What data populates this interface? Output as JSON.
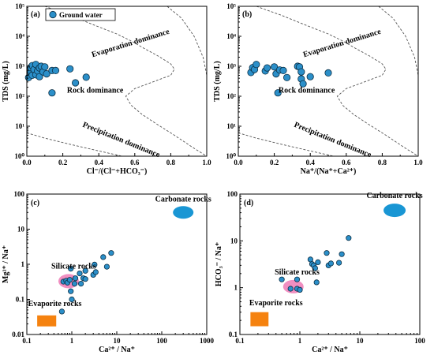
{
  "colors": {
    "point_fill": "#2b8fc9",
    "point_stroke": "#0b2f45",
    "boundary": "#555555",
    "carbonate": "#1996d4",
    "silicate": "#f08fc1",
    "evaporite": "#f5820f"
  },
  "chart_data": [
    {
      "id": "a",
      "type": "scatter",
      "panel_label": "(a)",
      "xlabel": "Cl⁻/(Cl⁻+HCO₃⁻)",
      "ylabel": "TDS (mg/L)",
      "xlim": [
        0,
        1
      ],
      "ylim": [
        1,
        100000
      ],
      "xscale": "linear",
      "yscale": "log",
      "x_ticks": [
        "0.0",
        "0.2",
        "0.4",
        "0.6",
        "0.8",
        "1.0"
      ],
      "y_ticks": [
        "10⁰",
        "10¹",
        "10²",
        "10³",
        "10⁴",
        "10⁵"
      ],
      "legend": {
        "label": "Ground water",
        "placement": "top-left"
      },
      "annotations": [
        "Evaporation dominance",
        "Rock dominance",
        "Precipitation dominance"
      ],
      "series": [
        {
          "name": "Ground water",
          "points": [
            [
              0.01,
              420
            ],
            [
              0.02,
              650
            ],
            [
              0.02,
              900
            ],
            [
              0.03,
              500
            ],
            [
              0.03,
              1050
            ],
            [
              0.04,
              780
            ],
            [
              0.05,
              1150
            ],
            [
              0.05,
              520
            ],
            [
              0.06,
              700
            ],
            [
              0.07,
              880
            ],
            [
              0.07,
              450
            ],
            [
              0.08,
              1000
            ],
            [
              0.09,
              650
            ],
            [
              0.1,
              950
            ],
            [
              0.11,
              560
            ],
            [
              0.14,
              720
            ],
            [
              0.16,
              720
            ],
            [
              0.14,
              130
            ],
            [
              0.24,
              820
            ],
            [
              0.27,
              280
            ],
            [
              0.33,
              430
            ]
          ]
        }
      ]
    },
    {
      "id": "b",
      "type": "scatter",
      "panel_label": "(b)",
      "xlabel": "Na⁺/(Na⁺+Ca²⁺)",
      "ylabel": "TDS (mg/L)",
      "xlim": [
        0,
        1
      ],
      "ylim": [
        1,
        100000
      ],
      "xscale": "linear",
      "yscale": "log",
      "x_ticks": [
        "0.0",
        "0.2",
        "0.4",
        "0.6",
        "0.8",
        "1.0"
      ],
      "y_ticks": [
        "10⁰",
        "10¹",
        "10²",
        "10³",
        "10⁴",
        "10⁵"
      ],
      "annotations": [
        "Evaporation dominance",
        "Rock dominance",
        "Precipitation dominance"
      ],
      "series": [
        {
          "points": [
            [
              0.07,
              620
            ],
            [
              0.08,
              900
            ],
            [
              0.09,
              780
            ],
            [
              0.1,
              1150
            ],
            [
              0.15,
              700
            ],
            [
              0.16,
              880
            ],
            [
              0.2,
              950
            ],
            [
              0.21,
              560
            ],
            [
              0.22,
              130
            ],
            [
              0.23,
              750
            ],
            [
              0.25,
              720
            ],
            [
              0.27,
              420
            ],
            [
              0.33,
              1000
            ],
            [
              0.34,
              950
            ],
            [
              0.35,
              650
            ],
            [
              0.35,
              380
            ],
            [
              0.36,
              260
            ],
            [
              0.4,
              450
            ],
            [
              0.5,
              600
            ]
          ]
        }
      ]
    },
    {
      "id": "c",
      "type": "scatter",
      "panel_label": "(c)",
      "xlabel": "Ca²⁺ / Na⁺",
      "ylabel": "Mg²⁺ / Na⁺",
      "xlim": [
        0.1,
        1000
      ],
      "ylim": [
        0.01,
        100
      ],
      "xscale": "log",
      "yscale": "log",
      "x_ticks": [
        "0.1",
        "1",
        "10",
        "100",
        "1000"
      ],
      "y_ticks": [
        "0.01",
        "0.1",
        "1",
        "10",
        "100"
      ],
      "annotations": [
        "Carbonate rocks",
        "Silicate rocks",
        "Evaporite rocks"
      ],
      "series": [
        {
          "points": [
            [
              0.65,
              0.32
            ],
            [
              0.75,
              0.34
            ],
            [
              0.8,
              0.3
            ],
            [
              0.9,
              0.36
            ],
            [
              0.95,
              0.75
            ],
            [
              0.95,
              0.17
            ],
            [
              1.0,
              0.1
            ],
            [
              1.15,
              0.28
            ],
            [
              1.2,
              0.4
            ],
            [
              1.5,
              0.55
            ],
            [
              1.6,
              0.28
            ],
            [
              1.8,
              0.4
            ],
            [
              2.0,
              0.65
            ],
            [
              2.0,
              0.38
            ],
            [
              3.0,
              0.5
            ],
            [
              3.2,
              0.98
            ],
            [
              3.4,
              0.6
            ],
            [
              5.0,
              1.6
            ],
            [
              6.0,
              0.85
            ],
            [
              7.5,
              2.1
            ],
            [
              0.6,
              0.045
            ]
          ]
        }
      ]
    },
    {
      "id": "d",
      "type": "scatter",
      "panel_label": "(d)",
      "xlabel": "Ca²⁺ / Na⁺",
      "ylabel": "HCO₃⁻ / Na⁺",
      "xlim": [
        0.1,
        100
      ],
      "ylim": [
        0.1,
        100
      ],
      "xscale": "log",
      "yscale": "log",
      "x_ticks": [
        "0.1",
        "1",
        "10",
        "100"
      ],
      "y_ticks": [
        "0.1",
        "1",
        "10",
        "100"
      ],
      "annotations": [
        "Carbonate rocks",
        "Silicate rocks",
        "Evaporite rocks"
      ],
      "series": [
        {
          "points": [
            [
              0.5,
              1.5
            ],
            [
              0.7,
              0.95
            ],
            [
              0.9,
              0.95
            ],
            [
              0.9,
              1.5
            ],
            [
              1.0,
              0.9
            ],
            [
              1.5,
              4.0
            ],
            [
              1.6,
              3.2
            ],
            [
              1.7,
              3.0
            ],
            [
              1.8,
              2.6
            ],
            [
              1.9,
              1.3
            ],
            [
              2.0,
              3.5
            ],
            [
              2.8,
              5.5
            ],
            [
              3.0,
              3.0
            ],
            [
              3.3,
              3.3
            ],
            [
              4.5,
              3.4
            ],
            [
              5.0,
              5.2
            ],
            [
              6.5,
              11.5
            ]
          ]
        }
      ]
    }
  ]
}
